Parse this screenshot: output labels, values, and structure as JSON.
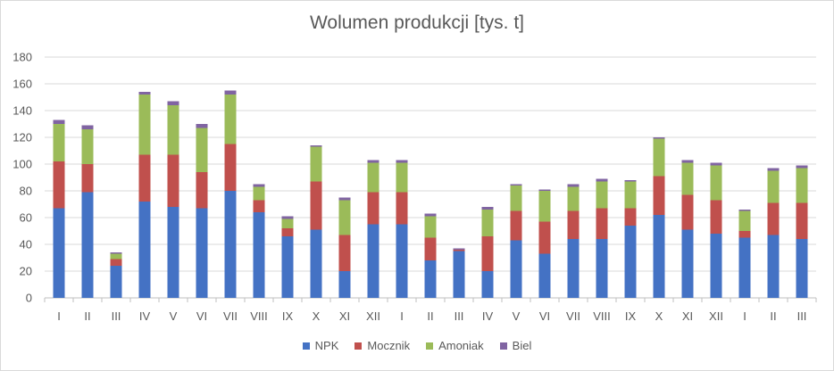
{
  "chart_data": {
    "type": "bar",
    "stacked": true,
    "title": "Wolumen produkcji [tys. t]",
    "xlabel": "",
    "ylabel": "",
    "ylim": [
      0,
      180
    ],
    "yticks": [
      0,
      20,
      40,
      60,
      80,
      100,
      120,
      140,
      160,
      180
    ],
    "grid": true,
    "legend_position": "bottom",
    "categories": [
      "I",
      "II",
      "III",
      "IV",
      "V",
      "VI",
      "VII",
      "VIII",
      "IX",
      "X",
      "XI",
      "XII",
      "I",
      "II",
      "III",
      "IV",
      "V",
      "VI",
      "VII",
      "VIII",
      "IX",
      "X",
      "XI",
      "XII",
      "I",
      "II",
      "III"
    ],
    "series": [
      {
        "name": "NPK",
        "color": "#4472c4",
        "values": [
          67,
          79,
          24,
          72,
          68,
          67,
          80,
          64,
          46,
          51,
          20,
          55,
          55,
          28,
          35,
          20,
          43,
          33,
          44,
          44,
          54,
          62,
          51,
          48,
          45,
          47,
          44
        ]
      },
      {
        "name": "Mocznik",
        "color": "#c0504d",
        "values": [
          35,
          21,
          5,
          35,
          39,
          27,
          35,
          9,
          6,
          36,
          27,
          24,
          24,
          17,
          1,
          26,
          22,
          24,
          21,
          23,
          13,
          29,
          26,
          25,
          5,
          24,
          27
        ]
      },
      {
        "name": "Amoniak",
        "color": "#9bbb59",
        "values": [
          28,
          26,
          4,
          45,
          37,
          33,
          37,
          10,
          7,
          26,
          26,
          22,
          22,
          16,
          0,
          20,
          19,
          23,
          18,
          20,
          20,
          28,
          24,
          26,
          15,
          24,
          26
        ]
      },
      {
        "name": "Biel",
        "color": "#8064a2",
        "values": [
          3,
          3,
          1,
          2,
          3,
          3,
          3,
          2,
          2,
          1,
          2,
          2,
          2,
          2,
          1,
          2,
          1,
          1,
          2,
          2,
          1,
          1,
          2,
          2,
          1,
          2,
          2
        ]
      }
    ]
  }
}
